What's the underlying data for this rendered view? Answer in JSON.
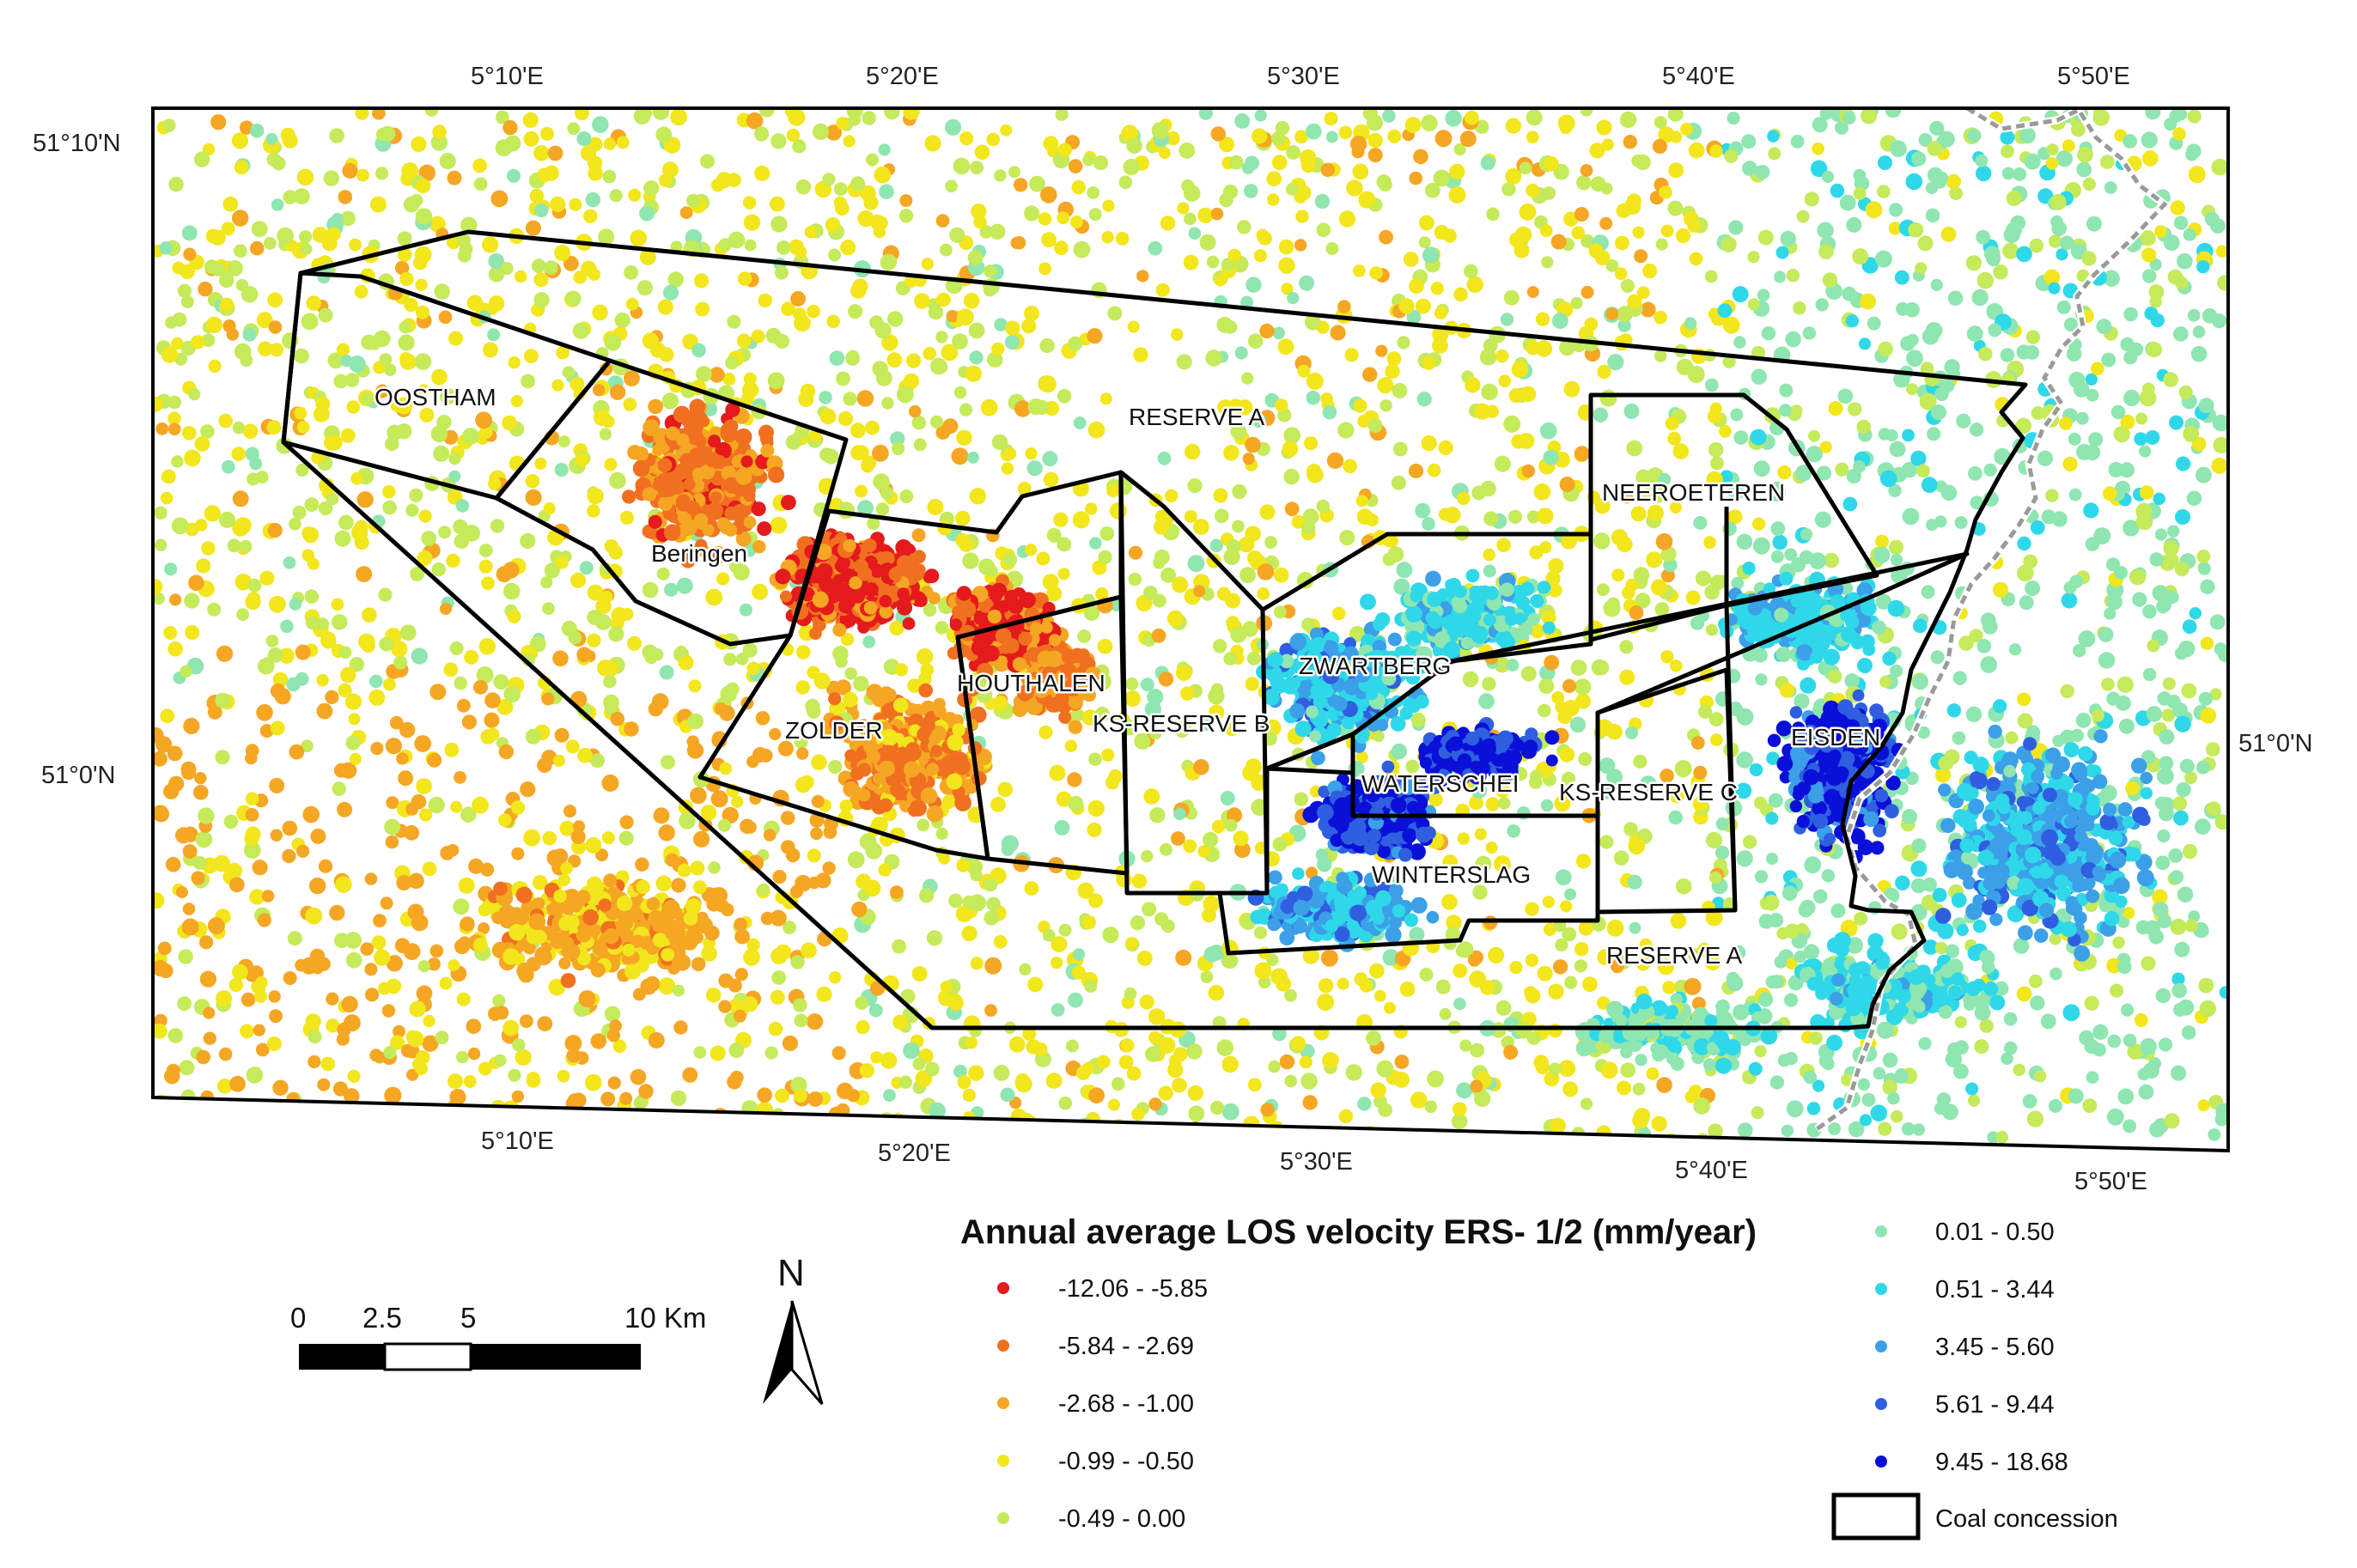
{
  "map": {
    "coord_labels": {
      "top": [
        "5°10'E",
        "5°20'E",
        "5°30'E",
        "5°40'E",
        "5°50'E"
      ],
      "bottom": [
        "5°10'E",
        "5°20'E",
        "5°30'E",
        "5°40'E",
        "5°50'E"
      ],
      "left": [
        "51°10'N",
        "51°0'N"
      ],
      "right": [
        "51°0'N"
      ]
    },
    "area_labels": [
      "OOSTHAM",
      "RESERVE A",
      "Beringen",
      "NEEROETEREN",
      "ZWARTBERG",
      "HOUTHALEN",
      "KS-RESERVE B",
      "ZOLDER",
      "EISDEN",
      "WATERSCHEI",
      "KS-RESERVE C",
      "WINTERSLAG",
      "RESERVE A"
    ],
    "colors": {
      "concession_line": "#000000",
      "border_line": "#9a9a9a"
    }
  },
  "legend": {
    "title": "Annual average LOS velocity ERS- 1/2  (mm/year)",
    "classes": [
      {
        "label": "-12.06 - -5.85",
        "color": "#e41a1c"
      },
      {
        "label": "-5.84 - -2.69",
        "color": "#f07020"
      },
      {
        "label": "-2.68 - -1.00",
        "color": "#f5a623"
      },
      {
        "label": "-0.99 - -0.50",
        "color": "#f2e61c"
      },
      {
        "label": "-0.49 - 0.00",
        "color": "#c5ea5a"
      },
      {
        "label": "0.01 - 0.50",
        "color": "#8fe6b0"
      },
      {
        "label": "0.51 - 3.44",
        "color": "#2fd8e8"
      },
      {
        "label": "3.45 - 5.60",
        "color": "#3ba0e8"
      },
      {
        "label": "5.61 - 9.44",
        "color": "#2f5fe0"
      },
      {
        "label": "9.45 - 18.68",
        "color": "#0a10d8"
      }
    ],
    "concession_label": "Coal concession"
  },
  "scale_bar": {
    "labels": [
      "0",
      "2.5",
      "5",
      "10 Km"
    ]
  },
  "north_arrow": {
    "label": "N"
  }
}
